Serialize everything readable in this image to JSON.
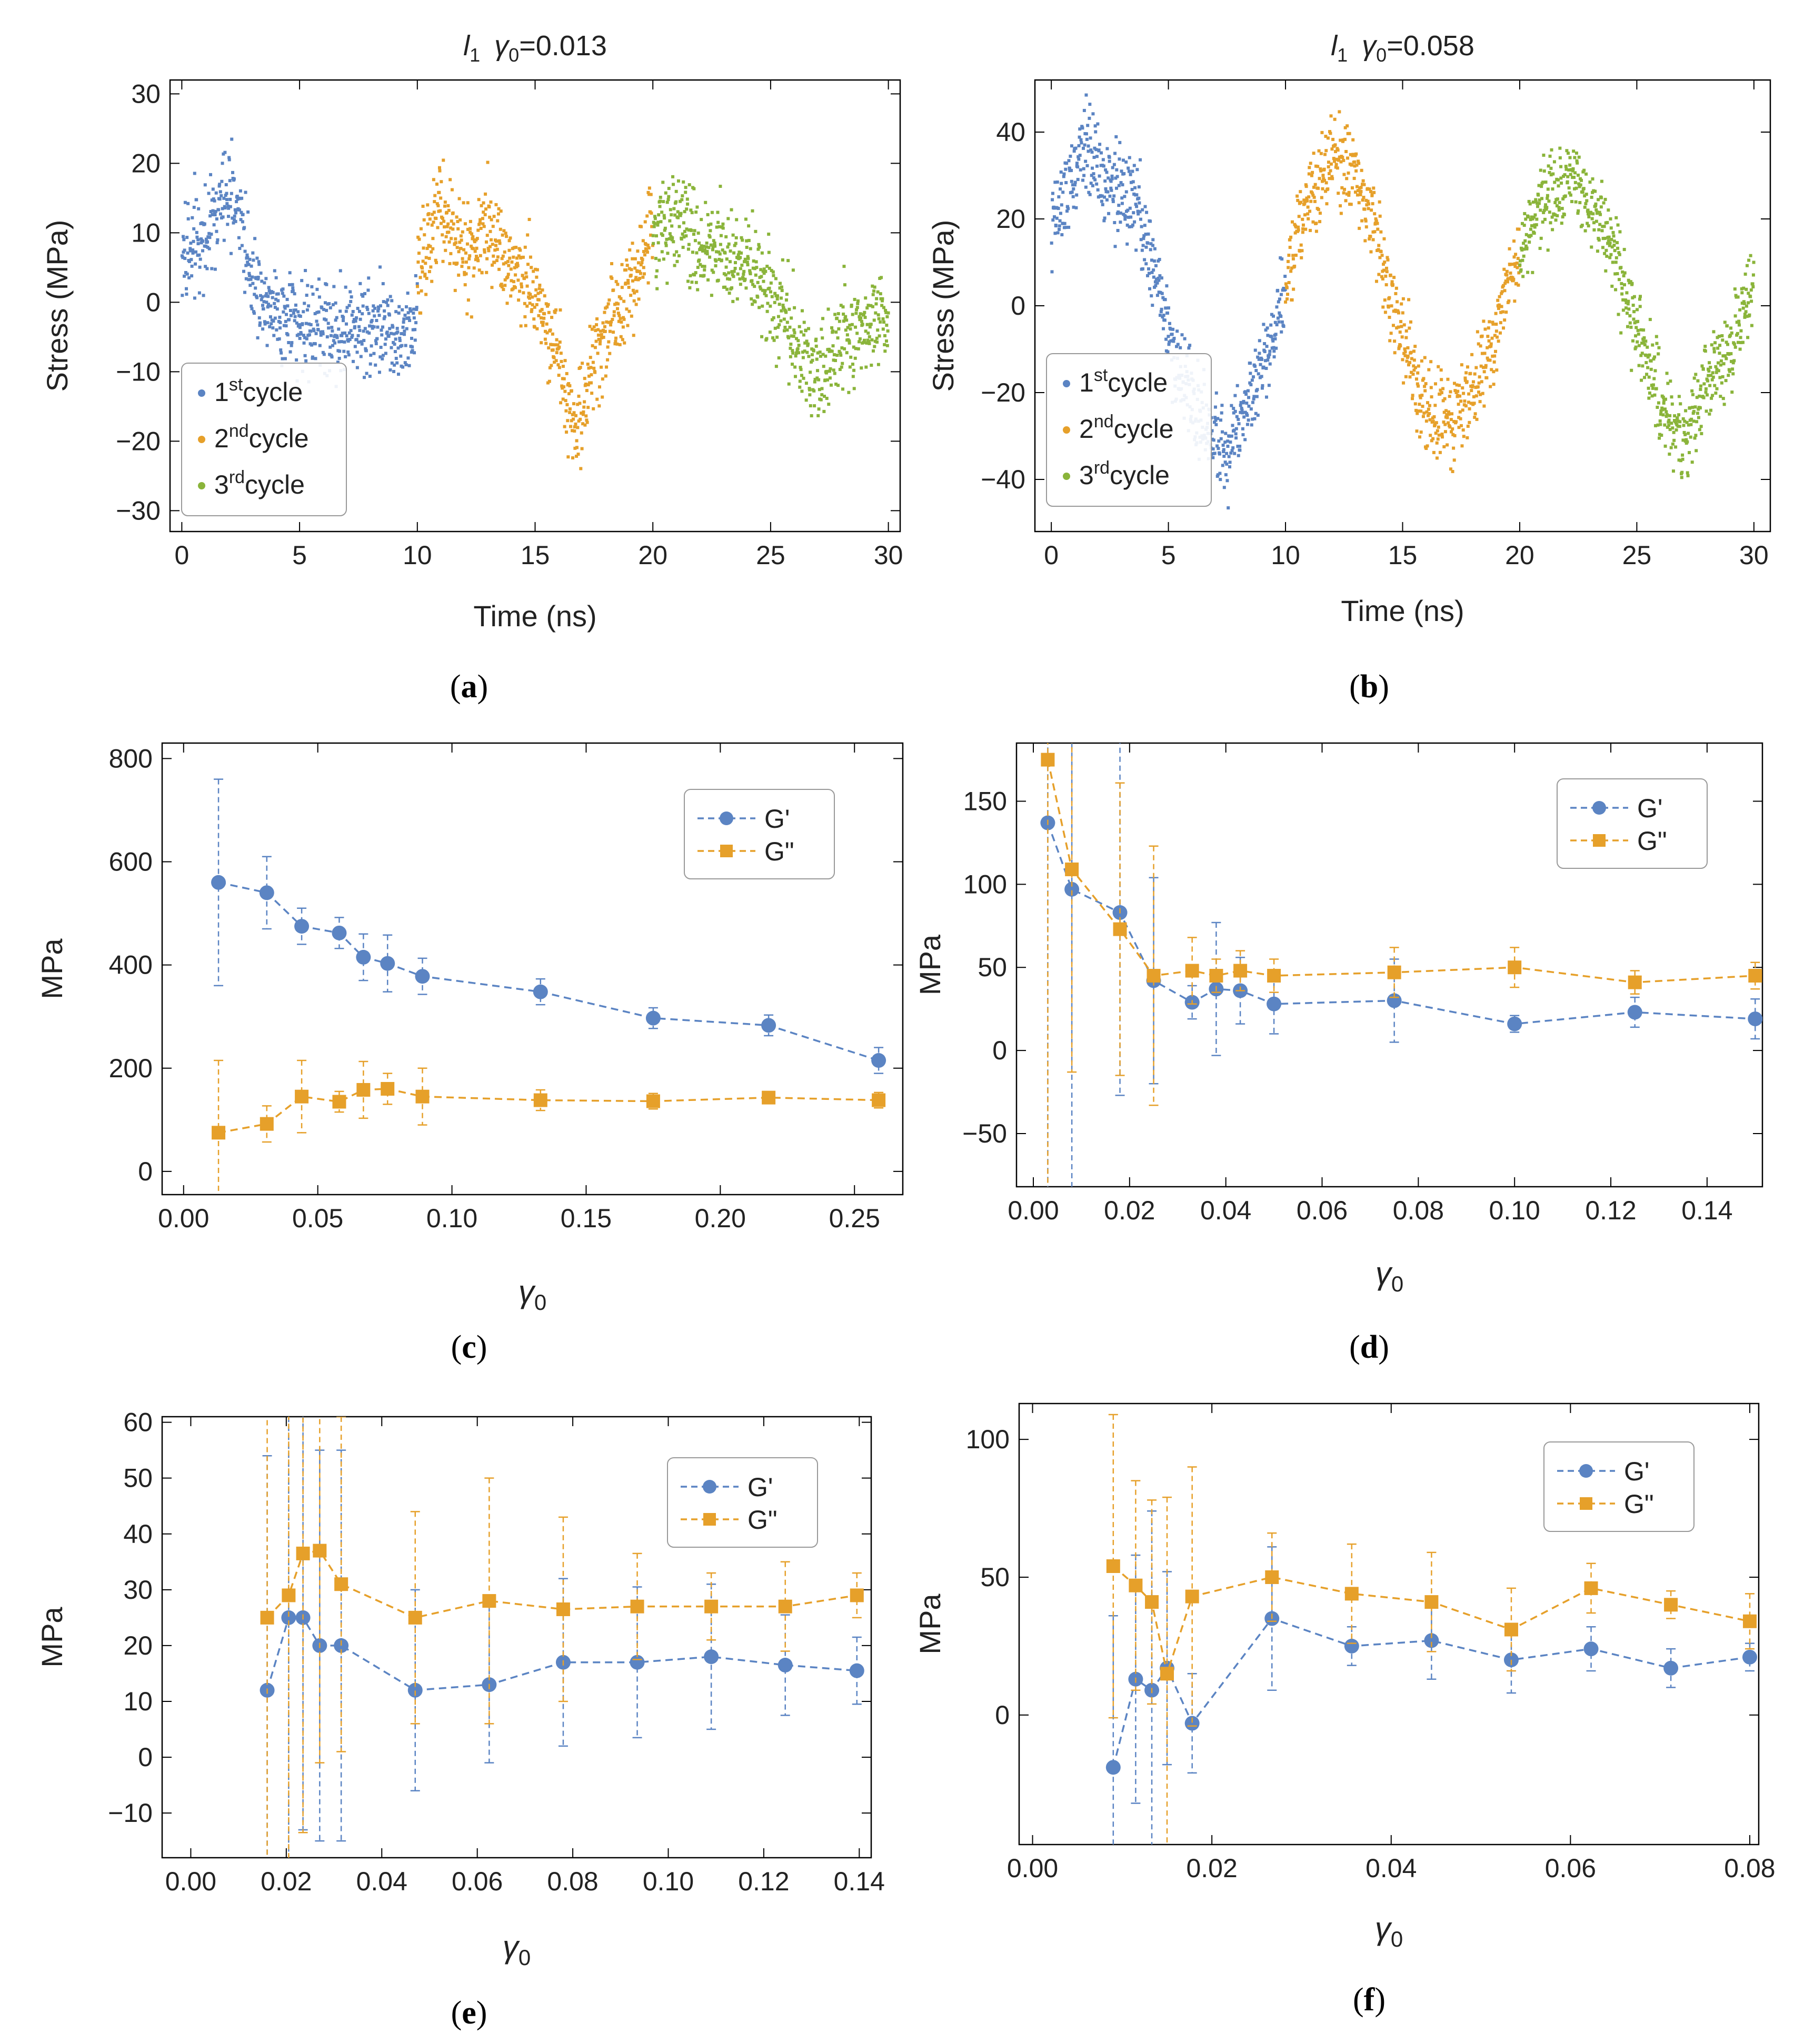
{
  "colors": {
    "blue": "#5B84C3",
    "orange": "#E6A02A",
    "green": "#8AB43A",
    "frame": "#000000"
  },
  "panel_labels": {
    "a": "a",
    "b": "b",
    "c": "c",
    "d": "d",
    "e": "e",
    "f": "f"
  },
  "chart_data": [
    {
      "id": "a",
      "type": "scatter",
      "title_var": "l",
      "title_sub": "1",
      "title_gamma": "γ",
      "title_gsub": "0",
      "title_value": "=0.013",
      "xlabel": "Time (ns)",
      "ylabel": "Stress (MPa)",
      "xlim": [
        -0.5,
        30.5
      ],
      "ylim": [
        -33,
        32
      ],
      "xticks": [
        0,
        5,
        10,
        15,
        20,
        25,
        30
      ],
      "yticks": [
        -30,
        -20,
        -10,
        0,
        10,
        20,
        30
      ],
      "legend": [
        {
          "num": "1",
          "sup": "st",
          "word": "cycle",
          "color": "blue"
        },
        {
          "num": "2",
          "sup": "nd",
          "word": "cycle",
          "color": "orange"
        },
        {
          "num": "3",
          "sup": "rd",
          "word": "cycle",
          "color": "green"
        }
      ],
      "series": [
        {
          "name": "1st cycle",
          "color": "blue",
          "x": [
            0,
            1,
            2,
            2.5,
            3,
            4,
            5,
            6,
            7,
            8,
            9,
            10
          ],
          "y": [
            6,
            10,
            16,
            13,
            3,
            -1,
            -3,
            -4,
            -4,
            -3,
            -5,
            -3
          ]
        },
        {
          "name": "2nd cycle",
          "color": "orange",
          "x": [
            10,
            11,
            12,
            13,
            14,
            15,
            16,
            16.7,
            17.5,
            18.5,
            19.5,
            20
          ],
          "y": [
            4,
            13,
            6,
            11,
            5,
            1,
            -7,
            -19,
            -8,
            -1,
            7,
            11
          ]
        },
        {
          "name": "3rd cycle",
          "color": "green",
          "x": [
            20,
            21,
            22,
            23,
            24,
            25,
            26,
            26.5,
            27,
            28,
            29,
            30
          ],
          "y": [
            11,
            11,
            8,
            8,
            5,
            2,
            -5,
            -9,
            -12,
            -5,
            -5,
            -1
          ]
        }
      ],
      "noise": 5
    },
    {
      "id": "b",
      "type": "scatter",
      "title_var": "l",
      "title_sub": "1",
      "title_gamma": "γ",
      "title_gsub": "0",
      "title_value": "=0.058",
      "xlabel": "Time (ns)",
      "ylabel": "Stress (MPa)",
      "xlim": [
        -0.7,
        30.7
      ],
      "ylim": [
        -52,
        52
      ],
      "xticks": [
        0,
        5,
        10,
        15,
        20,
        25,
        30
      ],
      "yticks": [
        -40,
        -20,
        0,
        20,
        40
      ],
      "legend": [
        {
          "num": "1",
          "sup": "st",
          "word": "cycle",
          "color": "blue"
        },
        {
          "num": "2",
          "sup": "nd",
          "word": "cycle",
          "color": "orange"
        },
        {
          "num": "3",
          "sup": "rd",
          "word": "cycle",
          "color": "green"
        }
      ],
      "series": [
        {
          "name": "1st cycle",
          "color": "blue",
          "x": [
            0,
            1,
            1.5,
            2.5,
            3.5,
            4.5,
            5.5,
            6.5,
            7.5,
            8.5,
            9.5,
            10
          ],
          "y": [
            18,
            30,
            38,
            27,
            25,
            6,
            -16,
            -28,
            -33,
            -20,
            -5,
            6
          ]
        },
        {
          "name": "2nd cycle",
          "color": "orange",
          "x": [
            10,
            11,
            12,
            13,
            14,
            15,
            16,
            17,
            18,
            19,
            20
          ],
          "y": [
            6,
            25,
            35,
            30,
            14,
            -8,
            -25,
            -28,
            -20,
            -6,
            12
          ]
        },
        {
          "name": "3rd cycle",
          "color": "green",
          "x": [
            20,
            21,
            22,
            23,
            24,
            25,
            26,
            27,
            28,
            29,
            30
          ],
          "y": [
            12,
            24,
            28,
            25,
            12,
            -6,
            -22,
            -32,
            -18,
            -10,
            6
          ]
        }
      ],
      "noise": 7
    },
    {
      "id": "c",
      "type": "line",
      "xlabel": "γ",
      "xlabel_sub": "0",
      "ylabel": "MPa",
      "xlim": [
        -0.008,
        0.268
      ],
      "ylim": [
        -45,
        830
      ],
      "xticks": [
        0.0,
        0.05,
        0.1,
        0.15,
        0.2,
        0.25
      ],
      "xtick_decimals": 2,
      "yticks": [
        0,
        200,
        400,
        600,
        800
      ],
      "legend_pos": "top-right",
      "series": [
        {
          "name": "G'",
          "marker": "circle",
          "color": "blue",
          "x": [
            0.013,
            0.031,
            0.044,
            0.058,
            0.067,
            0.076,
            0.089,
            0.133,
            0.175,
            0.218,
            0.259
          ],
          "y": [
            560,
            540,
            475,
            462,
            415,
            403,
            378,
            348,
            297,
            283,
            215
          ],
          "err": [
            200,
            70,
            35,
            30,
            45,
            55,
            35,
            25,
            20,
            20,
            25
          ]
        },
        {
          "name": "G\"",
          "marker": "square",
          "color": "orange",
          "x": [
            0.013,
            0.031,
            0.044,
            0.058,
            0.067,
            0.076,
            0.089,
            0.133,
            0.175,
            0.218,
            0.259
          ],
          "y": [
            75,
            92,
            145,
            135,
            158,
            160,
            145,
            138,
            136,
            143,
            138
          ],
          "err": [
            140,
            35,
            70,
            20,
            55,
            30,
            55,
            20,
            15,
            10,
            15
          ]
        }
      ]
    },
    {
      "id": "d",
      "type": "line",
      "xlabel": "γ",
      "xlabel_sub": "0",
      "ylabel": "MPa",
      "xlim": [
        -0.0035,
        0.1515
      ],
      "ylim": [
        -82,
        185
      ],
      "xticks": [
        0.0,
        0.02,
        0.04,
        0.06,
        0.08,
        0.1,
        0.12,
        0.14
      ],
      "xtick_decimals": 2,
      "yticks": [
        -50,
        0,
        50,
        100,
        150
      ],
      "legend_pos": "top-right",
      "series": [
        {
          "name": "G'",
          "marker": "circle",
          "color": "blue",
          "x": [
            0.003,
            0.008,
            0.018,
            0.025,
            0.033,
            0.038,
            0.043,
            0.05,
            0.075,
            0.1,
            0.125,
            0.15
          ],
          "y": [
            137,
            97,
            83,
            42,
            29,
            37,
            36,
            28,
            30,
            16,
            23,
            19
          ],
          "err": [
            250,
            190,
            110,
            62,
            10,
            40,
            20,
            18,
            25,
            5,
            9,
            12
          ]
        },
        {
          "name": "G\"",
          "marker": "square",
          "color": "orange",
          "x": [
            0.003,
            0.008,
            0.018,
            0.025,
            0.033,
            0.038,
            0.043,
            0.05,
            0.075,
            0.1,
            0.125,
            0.15
          ],
          "y": [
            175,
            109,
            73,
            45,
            48,
            45,
            48,
            45,
            47,
            50,
            41,
            45
          ],
          "err": [
            260,
            122,
            88,
            78,
            20,
            10,
            12,
            10,
            15,
            12,
            7,
            8
          ]
        }
      ]
    },
    {
      "id": "e",
      "type": "line",
      "xlabel": "γ",
      "xlabel_sub": "0",
      "ylabel": "MPa",
      "xlim": [
        -0.006,
        0.1425
      ],
      "ylim": [
        -18,
        61
      ],
      "xticks": [
        0.0,
        0.02,
        0.04,
        0.06,
        0.08,
        0.1,
        0.12,
        0.14
      ],
      "xtick_decimals": 2,
      "yticks": [
        -10,
        0,
        10,
        20,
        30,
        40,
        50,
        60
      ],
      "legend_pos": "top-right",
      "series": [
        {
          "name": "G'",
          "marker": "circle",
          "color": "blue",
          "x": [
            0.016,
            0.0205,
            0.0235,
            0.027,
            0.0315,
            0.047,
            0.0625,
            0.078,
            0.0935,
            0.109,
            0.1245,
            0.1395
          ],
          "y": [
            12,
            25,
            25,
            20,
            20,
            12,
            13,
            17,
            17,
            18,
            16.5,
            15.5
          ],
          "err": [
            42,
            60,
            38,
            35,
            35,
            18,
            14,
            15,
            13.5,
            13,
            9,
            6
          ]
        },
        {
          "name": "G\"",
          "marker": "square",
          "color": "orange",
          "x": [
            0.016,
            0.0205,
            0.0235,
            0.027,
            0.0315,
            0.047,
            0.0625,
            0.078,
            0.0935,
            0.109,
            0.1245,
            0.1395
          ],
          "y": [
            25,
            29,
            36.5,
            37,
            31,
            25,
            28,
            26.5,
            27,
            27,
            27,
            29
          ],
          "err": [
            45,
            50,
            50,
            38,
            30,
            19,
            22,
            16.5,
            9.5,
            6,
            8,
            4
          ]
        }
      ]
    },
    {
      "id": "f",
      "type": "line",
      "xlabel": "γ",
      "xlabel_sub": "0",
      "ylabel": "MPa",
      "xlim": [
        -0.0015,
        0.081
      ],
      "ylim": [
        -47,
        113
      ],
      "xticks": [
        0.0,
        0.02,
        0.04,
        0.06,
        0.08
      ],
      "xtick_decimals": 2,
      "yticks": [
        0,
        50,
        100
      ],
      "legend_pos": "top-right",
      "series": [
        {
          "name": "G'",
          "marker": "circle",
          "color": "blue",
          "x": [
            0.009,
            0.0115,
            0.0133,
            0.015,
            0.0178,
            0.0267,
            0.0356,
            0.0445,
            0.0534,
            0.0623,
            0.0712,
            0.08
          ],
          "y": [
            -19,
            13,
            9,
            17,
            -3,
            35,
            25,
            27,
            20,
            24,
            17,
            21
          ],
          "err": [
            55,
            45,
            65,
            35,
            18,
            26,
            7,
            14,
            12,
            8,
            7,
            5
          ]
        },
        {
          "name": "G\"",
          "marker": "square",
          "color": "orange",
          "x": [
            0.009,
            0.0115,
            0.0133,
            0.015,
            0.0178,
            0.0267,
            0.0356,
            0.0445,
            0.0534,
            0.0623,
            0.0712,
            0.08
          ],
          "y": [
            54,
            47,
            41,
            15,
            43,
            50,
            44,
            41,
            31,
            46,
            40,
            34
          ],
          "err": [
            55,
            38,
            37,
            64,
            47,
            16,
            18,
            18,
            15,
            9,
            5,
            10
          ]
        }
      ]
    }
  ]
}
